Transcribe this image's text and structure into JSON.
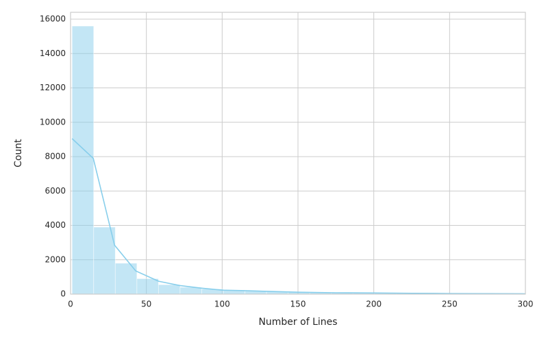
{
  "chart_data": {
    "type": "histogram",
    "xlabel": "Number of Lines",
    "ylabel": "Count",
    "bins": [
      1,
      15.25,
      29.5,
      43.75,
      58,
      72.25,
      86.5,
      100.75,
      115,
      129.25,
      143.5,
      157.75,
      172,
      186.25,
      200.5,
      214.75,
      229,
      243.25,
      257.5,
      271.75,
      286,
      300.25
    ],
    "counts": [
      15600,
      3900,
      1800,
      900,
      550,
      400,
      300,
      220,
      180,
      150,
      120,
      100,
      85,
      70,
      60,
      50,
      40,
      35,
      30,
      25,
      20
    ],
    "color": "#87ceeb",
    "kde": {
      "x": [
        1,
        15,
        29,
        43,
        58,
        72,
        86,
        100,
        115,
        130,
        150,
        175,
        200,
        225,
        250,
        275,
        300
      ],
      "values": [
        9050,
        7900,
        2850,
        1350,
        750,
        500,
        350,
        230,
        200,
        160,
        110,
        80,
        70,
        50,
        35,
        30,
        20
      ],
      "color": "#87ceeb"
    },
    "xlim": [
      0,
      300
    ],
    "xticks": [
      0,
      50,
      100,
      150,
      200,
      250,
      300
    ],
    "ylim": [
      0,
      16400
    ],
    "yticks": [
      0,
      2000,
      4000,
      6000,
      8000,
      10000,
      12000,
      14000,
      16000
    ],
    "grid": true
  }
}
